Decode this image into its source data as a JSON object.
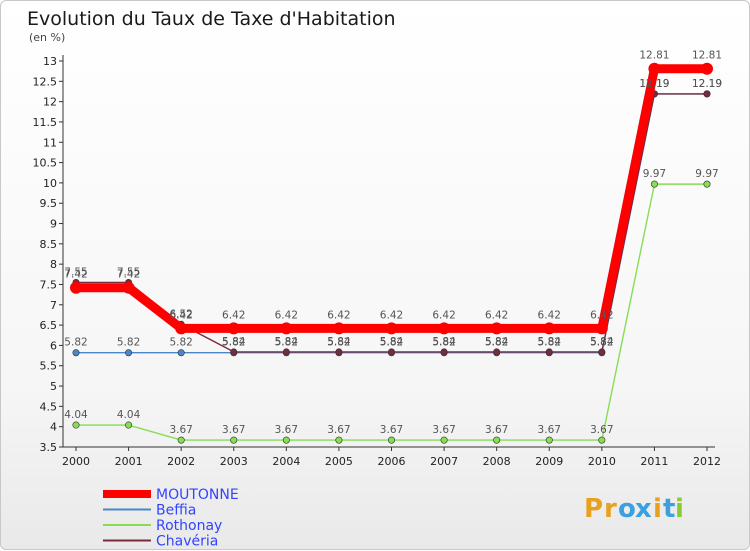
{
  "chart_data": {
    "type": "line",
    "title": "Evolution du Taux de Taxe d'Habitation",
    "subtitle": "(en %)",
    "categories": [
      "2000",
      "2001",
      "2002",
      "2003",
      "2004",
      "2005",
      "2006",
      "2007",
      "2008",
      "2009",
      "2010",
      "2011",
      "2012"
    ],
    "ylim": [
      3.5,
      13
    ],
    "yticks": [
      "3.5",
      "4",
      "4.5",
      "5",
      "5.5",
      "6",
      "6.5",
      "7",
      "7.5",
      "8",
      "8.5",
      "9",
      "9.5",
      "10",
      "10.5",
      "11",
      "11.5",
      "12",
      "12.5",
      "13"
    ],
    "grid": false,
    "series": [
      {
        "name": "MOUTONNE",
        "color": "#ff0000",
        "values": [
          7.42,
          7.42,
          6.42,
          6.42,
          6.42,
          6.42,
          6.42,
          6.42,
          6.42,
          6.42,
          6.42,
          12.81,
          12.81
        ],
        "labels": [
          "7.42",
          "7.42",
          "6.42",
          "6.42",
          "6.42",
          "6.42",
          "6.42",
          "6.42",
          "6.42",
          "6.42",
          "6.42",
          "12.81",
          "12.81"
        ]
      },
      {
        "name": "Beffia",
        "color": "#4a86c8",
        "values": [
          5.82,
          5.82,
          5.82,
          5.82,
          5.82,
          5.82,
          5.82,
          5.82,
          5.82,
          5.82,
          5.82,
          12.19,
          12.19
        ],
        "labels": [
          "5.82",
          "5.82",
          "5.82",
          "5.82",
          "5.82",
          "5.82",
          "5.82",
          "5.82",
          "5.82",
          "5.82",
          "5.82",
          "12.19",
          "12.19"
        ]
      },
      {
        "name": "Rothonay",
        "color": "#88dd55",
        "values": [
          4.04,
          4.04,
          3.67,
          3.67,
          3.67,
          3.67,
          3.67,
          3.67,
          3.67,
          3.67,
          3.67,
          9.97,
          9.97
        ],
        "labels": [
          "4.04",
          "4.04",
          "3.67",
          "3.67",
          "3.67",
          "3.67",
          "3.67",
          "3.67",
          "3.67",
          "3.67",
          "3.67",
          "9.97",
          "9.97"
        ]
      },
      {
        "name": "Chavéria",
        "color": "#7a2a3a",
        "values": [
          7.55,
          7.55,
          6.52,
          5.84,
          5.84,
          5.84,
          5.84,
          5.84,
          5.84,
          5.84,
          5.84,
          12.19,
          12.19
        ],
        "labels": [
          "7.55",
          "7.55",
          "6.52",
          "5.84",
          "5.84",
          "5.84",
          "5.84",
          "5.84",
          "5.84",
          "5.84",
          "5.84",
          "12.19",
          "12.19"
        ]
      }
    ],
    "legend_position": "bottom-left"
  },
  "branding": {
    "logo_letters": [
      "P",
      "r",
      "o",
      "x",
      "i",
      "t",
      "i"
    ],
    "logo_colors": [
      "#e8a020",
      "#e8a020",
      "#3aa0e0",
      "#3aa0e0",
      "#e8a020",
      "#3aa0e0",
      "#88cc33"
    ]
  },
  "colors": {
    "axis": "#333333",
    "legend_text": "#3344ff"
  }
}
